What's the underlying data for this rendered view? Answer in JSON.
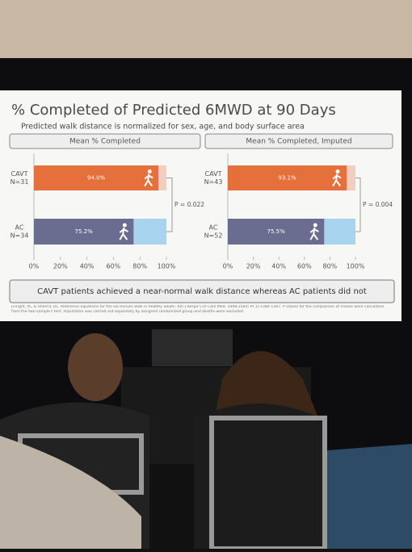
{
  "slide": {
    "title": "% Completed of Predicted 6MWD at 90 Days",
    "subtitle": "Predicted walk distance is normalized for sex, age, and body surface area",
    "conclusion": "CAVT patients achieved a near-normal walk distance whereas AC patients did not",
    "footnote": "Enright, PL, & Sherrill, DL. Reference equations for the six-minute walk in healthy adults. Am J Respir Crit Care Med. 1998;158(5 Pt 1):1384-1387. P values for the comparison of means were calculated from the two-sample t test. Imputation was carried out separately by assigned randomized group and deaths were excluded."
  },
  "chart_data": [
    {
      "type": "bar",
      "orientation": "horizontal",
      "title": "Mean % Completed",
      "categories": [
        "CAVT",
        "AC"
      ],
      "n_labels": [
        "N=31",
        "N=34"
      ],
      "values": [
        94.0,
        75.2
      ],
      "value_labels": [
        "94.0%",
        "75.2%"
      ],
      "colors": [
        "#e5703c",
        "#6a6d8f"
      ],
      "track_colors": [
        "#f3cdbf",
        "#a8d4f0"
      ],
      "p_value": "P = 0.022",
      "xlim": [
        0,
        100
      ],
      "xticks": [
        {
          "value": 0,
          "label": "0%"
        },
        {
          "value": 20,
          "label": "20%"
        },
        {
          "value": 40,
          "label": "40%"
        },
        {
          "value": 60,
          "label": "60%"
        },
        {
          "value": 80,
          "label": "80%"
        },
        {
          "value": 100,
          "label": "100%"
        }
      ]
    },
    {
      "type": "bar",
      "orientation": "horizontal",
      "title": "Mean % Completed, Imputed",
      "categories": [
        "CAVT",
        "AC"
      ],
      "n_labels": [
        "N=43",
        "N=52"
      ],
      "values": [
        93.1,
        75.5
      ],
      "value_labels": [
        "93.1%",
        "75.5%"
      ],
      "colors": [
        "#e5703c",
        "#6a6d8f"
      ],
      "track_colors": [
        "#f3cdbf",
        "#a8d4f0"
      ],
      "p_value": "P = 0.004",
      "xlim": [
        0,
        100
      ],
      "xticks": [
        {
          "value": 0,
          "label": "0%"
        },
        {
          "value": 20,
          "label": "20%"
        },
        {
          "value": 40,
          "label": "40%"
        },
        {
          "value": 60,
          "label": "60%"
        },
        {
          "value": 80,
          "label": "80%"
        },
        {
          "value": 100,
          "label": "100%"
        }
      ]
    }
  ]
}
